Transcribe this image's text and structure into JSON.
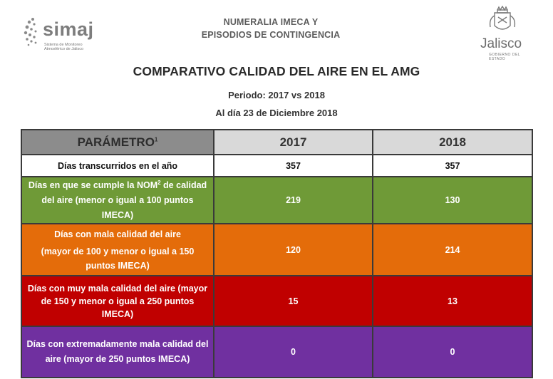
{
  "header": {
    "logo_left": {
      "name": "simaj",
      "subtitle_line1": "Sistema de Monitoreo",
      "subtitle_line2": "Atmosférico de Jalisco"
    },
    "title_line1": "NUMERALIA IMECA Y",
    "title_line2": "EPISODIOS DE CONTINGENCIA",
    "logo_right": {
      "name": "Jalisco",
      "subtitle": "GOBIERNO DEL ESTADO"
    }
  },
  "main_title": "COMPARATIVO CALIDAD DEL AIRE EN EL AMG",
  "period": "Periodo: 2017 vs 2018",
  "as_of": "Al día 23 de Diciembre 2018",
  "table": {
    "header": {
      "param": "PARÁMETRO",
      "param_sup": "1",
      "col_2017": "2017",
      "col_2018": "2018"
    },
    "rows": [
      {
        "label": "Días transcurridos en el año",
        "v2017": "357",
        "v2018": "357"
      },
      {
        "label_a": "Días en que se cumple la NOM",
        "label_sup": "2",
        "label_b": " de calidad del aire (menor o igual a 100 puntos IMECA)",
        "v2017": "219",
        "v2018": "130"
      },
      {
        "label_a": "Días con mala calidad del aire",
        "label_b": "(mayor de 100 y menor o igual a 150 puntos IMECA)",
        "v2017": "120",
        "v2018": "214"
      },
      {
        "label": "Días con muy mala calidad del aire (mayor de 150 y menor o igual a 250 puntos IMECA)",
        "v2017": "15",
        "v2018": "13"
      },
      {
        "label": "Días con extremadamente mala calidad del aire (mayor de 250 puntos IMECA)",
        "v2017": "0",
        "v2018": "0"
      }
    ]
  },
  "colors": {
    "header_param_bg": "#8c8c8c",
    "header_year_bg": "#d9d9d9",
    "good": "#6f9a37",
    "bad": "#e46c0a",
    "very_bad": "#c00000",
    "extreme": "#7030a0"
  }
}
